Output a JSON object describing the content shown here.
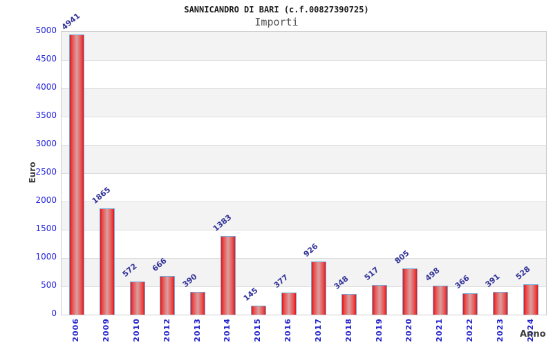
{
  "header": {
    "title": "SANNICANDRO DI BARI (c.f.00827390725)",
    "subtitle": "Importi"
  },
  "chart_data": {
    "type": "bar",
    "title": "SANNICANDRO DI BARI (c.f.00827390725)",
    "subtitle": "Importi",
    "xlabel": "Anno",
    "ylabel": "Euro",
    "categories": [
      "2006",
      "2009",
      "2010",
      "2012",
      "2013",
      "2014",
      "2015",
      "2016",
      "2017",
      "2018",
      "2019",
      "2020",
      "2021",
      "2022",
      "2023",
      "2024"
    ],
    "values": [
      4941,
      1865,
      572,
      666,
      390,
      1383,
      145,
      377,
      926,
      348,
      517,
      805,
      498,
      366,
      391,
      528
    ],
    "ylim": [
      0,
      5000
    ],
    "ytick_step": 500,
    "yticks": [
      5000,
      4500,
      4000,
      3500,
      3000,
      2500,
      2000,
      1500,
      1000,
      500,
      0
    ],
    "legend_position": "none",
    "grid": "horizontal-bands",
    "colors": {
      "bar_fill": "#e31616",
      "bar_fill_center": "#d9a0a0",
      "bar_border": "#72aadc",
      "value_label": "#333399",
      "tick_label": "#2222cc",
      "band_gray": "#f3f3f3",
      "band_white": "#ffffff",
      "plot_border": "#cccccc",
      "title": "#1a1a1a",
      "subtitle": "#555555",
      "axis_title": "#3c3c3c"
    }
  }
}
